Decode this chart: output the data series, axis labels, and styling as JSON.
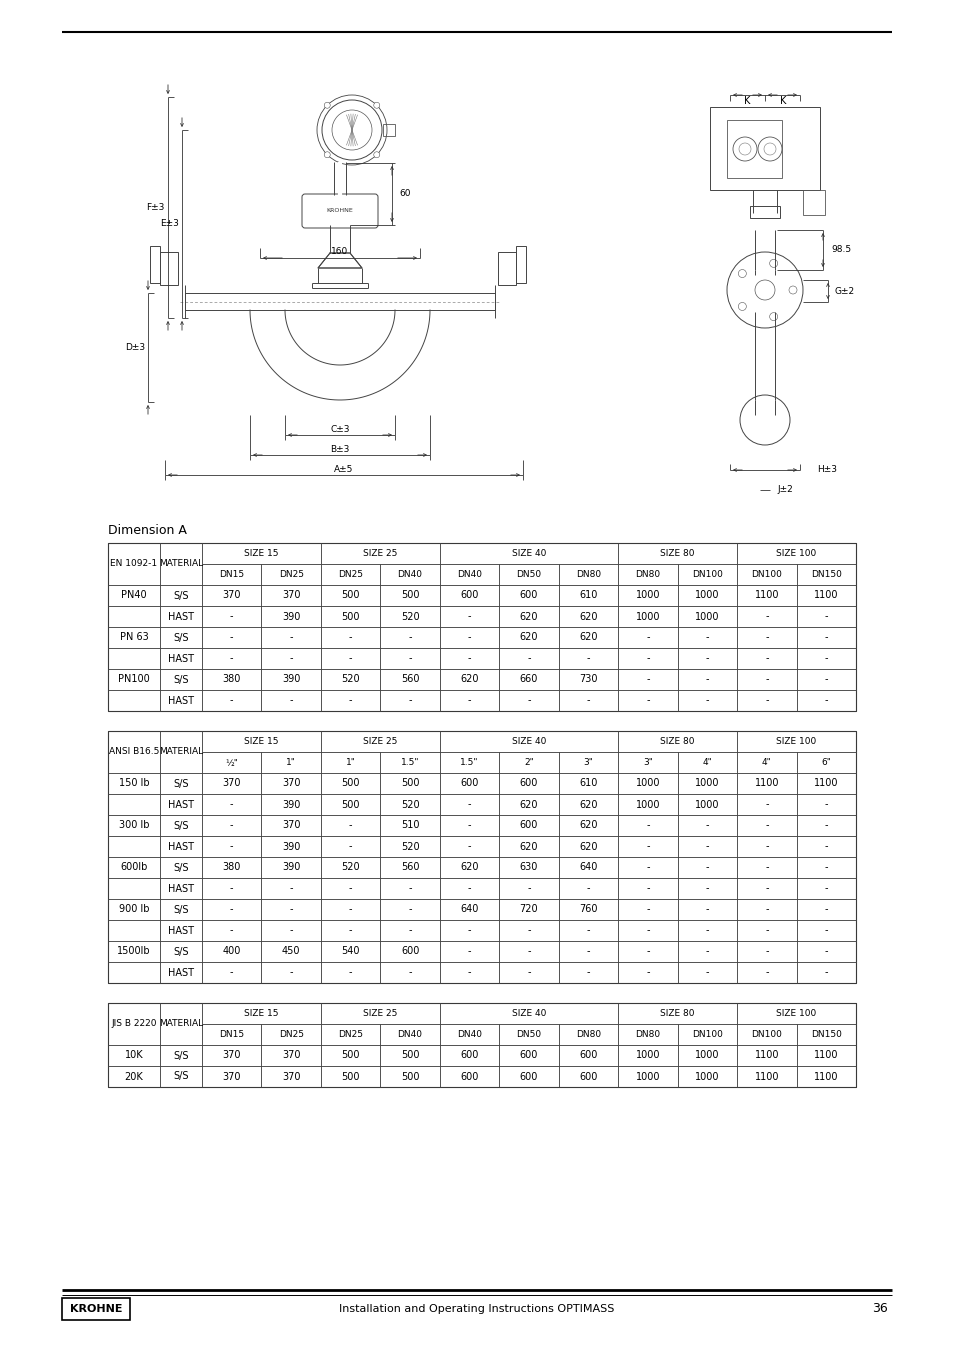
{
  "title_line": "Installation and Operating Instructions OPTIMASS",
  "page_num": "36",
  "section_title": "Dimension A",
  "bg_color": "#ffffff",
  "size_groups": [
    "SIZE 15",
    "SIZE 25",
    "SIZE 40",
    "SIZE 80",
    "SIZE 100"
  ],
  "table1": {
    "header": "EN 1092-1",
    "col_labels": [
      "DN15",
      "DN25",
      "DN25",
      "DN40",
      "DN40",
      "DN50",
      "DN80",
      "DN80",
      "DN100",
      "DN100",
      "DN150"
    ],
    "rows": [
      [
        "PN40",
        "S/S",
        "370",
        "370",
        "500",
        "500",
        "600",
        "600",
        "610",
        "1000",
        "1000",
        "1100",
        "1100"
      ],
      [
        "",
        "HAST",
        "-",
        "390",
        "500",
        "520",
        "-",
        "620",
        "620",
        "1000",
        "1000",
        "-",
        "-"
      ],
      [
        "PN 63",
        "S/S",
        "-",
        "-",
        "-",
        "-",
        "-",
        "620",
        "620",
        "-",
        "-",
        "-",
        "-"
      ],
      [
        "",
        "HAST",
        "-",
        "-",
        "-",
        "-",
        "-",
        "-",
        "-",
        "-",
        "-",
        "-",
        "-"
      ],
      [
        "PN100",
        "S/S",
        "380",
        "390",
        "520",
        "560",
        "620",
        "660",
        "730",
        "-",
        "-",
        "-",
        "-"
      ],
      [
        "",
        "HAST",
        "-",
        "-",
        "-",
        "-",
        "-",
        "-",
        "-",
        "-",
        "-",
        "-",
        "-"
      ]
    ]
  },
  "table2": {
    "header": "ANSI B16.5",
    "col_labels": [
      "½\"",
      "1\"",
      "1\"",
      "1.5\"",
      "1.5\"",
      "2\"",
      "3\"",
      "3\"",
      "4\"",
      "4\"",
      "6\""
    ],
    "rows": [
      [
        "150 lb",
        "S/S",
        "370",
        "370",
        "500",
        "500",
        "600",
        "600",
        "610",
        "1000",
        "1000",
        "1100",
        "1100"
      ],
      [
        "",
        "HAST",
        "-",
        "390",
        "500",
        "520",
        "-",
        "620",
        "620",
        "1000",
        "1000",
        "-",
        "-"
      ],
      [
        "300 lb",
        "S/S",
        "-",
        "370",
        "-",
        "510",
        "-",
        "600",
        "620",
        "-",
        "-",
        "-",
        "-"
      ],
      [
        "",
        "HAST",
        "-",
        "390",
        "-",
        "520",
        "-",
        "620",
        "620",
        "-",
        "-",
        "-",
        "-"
      ],
      [
        "600lb",
        "S/S",
        "380",
        "390",
        "520",
        "560",
        "620",
        "630",
        "640",
        "-",
        "-",
        "-",
        "-"
      ],
      [
        "",
        "HAST",
        "-",
        "-",
        "-",
        "-",
        "-",
        "-",
        "-",
        "-",
        "-",
        "-",
        "-"
      ],
      [
        "900 lb",
        "S/S",
        "-",
        "-",
        "-",
        "-",
        "640",
        "720",
        "760",
        "-",
        "-",
        "-",
        "-"
      ],
      [
        "",
        "HAST",
        "-",
        "-",
        "-",
        "-",
        "-",
        "-",
        "-",
        "-",
        "-",
        "-",
        "-"
      ],
      [
        "1500lb",
        "S/S",
        "400",
        "450",
        "540",
        "600",
        "-",
        "-",
        "-",
        "-",
        "-",
        "-",
        "-"
      ],
      [
        "",
        "HAST",
        "-",
        "-",
        "-",
        "-",
        "-",
        "-",
        "-",
        "-",
        "-",
        "-",
        "-"
      ]
    ]
  },
  "table3": {
    "header": "JIS B 2220",
    "col_labels": [
      "DN15",
      "DN25",
      "DN25",
      "DN40",
      "DN40",
      "DN50",
      "DN80",
      "DN80",
      "DN100",
      "DN100",
      "DN150"
    ],
    "rows": [
      [
        "10K",
        "S/S",
        "370",
        "370",
        "500",
        "500",
        "600",
        "600",
        "600",
        "1000",
        "1000",
        "1100",
        "1100"
      ],
      [
        "20K",
        "S/S",
        "370",
        "370",
        "500",
        "500",
        "600",
        "600",
        "600",
        "1000",
        "1000",
        "1100",
        "1100"
      ]
    ]
  }
}
